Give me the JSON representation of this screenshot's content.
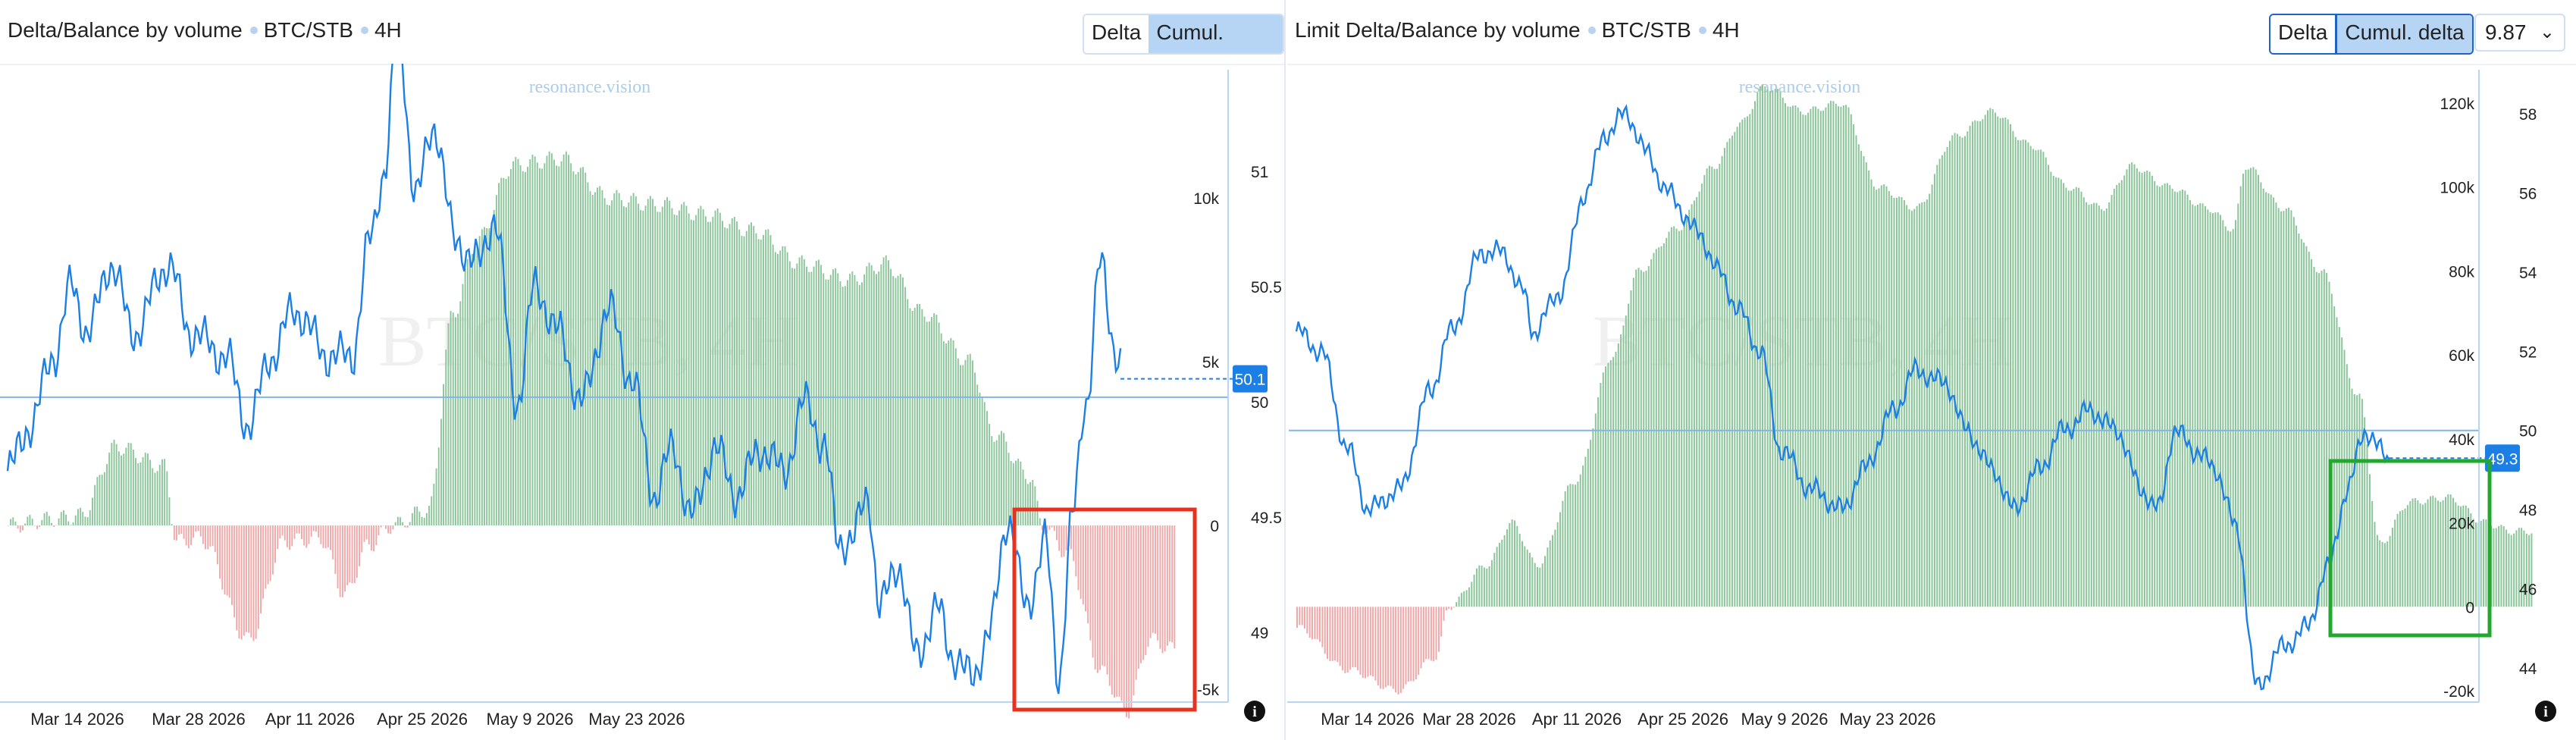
{
  "panels": [
    {
      "title": "Delta/Balance by volume",
      "pair": "BTC/STB",
      "timeframe": "4H",
      "buttons": {
        "delta": "Delta",
        "cumul": "Cumul. delta"
      },
      "watermark_site": "resonance.vision",
      "watermark_main": "BTC/STB, 4H"
    },
    {
      "title": "Limit Delta/Balance by volume",
      "pair": "BTC/STB",
      "timeframe": "4H",
      "buttons": {
        "delta": "Delta",
        "cumul": "Cumul. delta"
      },
      "select_value": "9.87",
      "watermark_site": "resonance.vision",
      "watermark_main": "BTC/STB, 4H"
    }
  ],
  "colors": {
    "price": "#1c7fe6",
    "positive": "#8cc59a",
    "negative": "#f0a7a7",
    "badge": "#1c7fe6",
    "highlight_left": "#e6321e",
    "highlight_right": "#23a82f"
  },
  "chart_data": [
    {
      "type": "bar",
      "title": "Delta/Balance by volume",
      "x_ticks": [
        "Mar 14 2026",
        "Mar 28 2026",
        "Apr 11 2026",
        "Apr 25 2026",
        "May 9 2026",
        "May 23 2026"
      ],
      "delta_ticks": [
        "10k",
        "5k",
        "0",
        "-5k"
      ],
      "price_ticks": [
        "51",
        "50.5",
        "50",
        "49.5",
        "49"
      ],
      "price_range": [
        48.82,
        51.5
      ],
      "delta_range": [
        -6500,
        13000
      ],
      "last_price_label": "50.1",
      "series": [
        {
          "kind": "cumulative_delta",
          "keypoints": [
            [
              0,
              0
            ],
            [
              20,
              200
            ],
            [
              30,
              300
            ],
            [
              45,
              2400
            ],
            [
              65,
              1800
            ],
            [
              70,
              -500
            ],
            [
              80,
              -400
            ],
            [
              100,
              -3500
            ],
            [
              115,
              -500
            ],
            [
              130,
              -400
            ],
            [
              140,
              -2100
            ],
            [
              150,
              -600
            ],
            [
              160,
              0
            ],
            [
              175,
              500
            ],
            [
              185,
              6500
            ],
            [
              195,
              8700
            ],
            [
              210,
              11000
            ],
            [
              230,
              11200
            ],
            [
              250,
              10000
            ],
            [
              270,
              9800
            ],
            [
              290,
              9500
            ],
            [
              310,
              9000
            ],
            [
              330,
              8000
            ],
            [
              350,
              7500
            ],
            [
              365,
              8000
            ],
            [
              380,
              6500
            ],
            [
              400,
              5000
            ],
            [
              410,
              2800
            ],
            [
              425,
              1500
            ],
            [
              430,
              0
            ],
            [
              440,
              -800
            ],
            [
              455,
              -4500
            ],
            [
              465,
              -5700
            ],
            [
              475,
              -3500
            ],
            [
              485,
              -3800
            ]
          ]
        },
        {
          "kind": "price",
          "keypoints": [
            [
              0,
              49.7
            ],
            [
              10,
              49.9
            ],
            [
              20,
              50.2
            ],
            [
              28,
              50.5
            ],
            [
              35,
              50.3
            ],
            [
              45,
              50.6
            ],
            [
              55,
              50.3
            ],
            [
              70,
              50.6
            ],
            [
              80,
              50.3
            ],
            [
              95,
              50.2
            ],
            [
              105,
              49.9
            ],
            [
              115,
              50.2
            ],
            [
              125,
              50.4
            ],
            [
              140,
              50.2
            ],
            [
              150,
              50.2
            ],
            [
              158,
              50.7
            ],
            [
              164,
              51.0
            ],
            [
              170,
              51.6
            ],
            [
              178,
              50.9
            ],
            [
              186,
              51.2
            ],
            [
              195,
              50.7
            ],
            [
              205,
              50.6
            ],
            [
              212,
              50.8
            ],
            [
              222,
              50.0
            ],
            [
              230,
              50.5
            ],
            [
              240,
              50.3
            ],
            [
              250,
              50.0
            ],
            [
              262,
              50.4
            ],
            [
              272,
              50.1
            ],
            [
              282,
              49.6
            ],
            [
              290,
              49.8
            ],
            [
              298,
              49.5
            ],
            [
              308,
              49.8
            ],
            [
              318,
              49.6
            ],
            [
              328,
              49.8
            ],
            [
              338,
              49.7
            ],
            [
              348,
              50.0
            ],
            [
              356,
              49.8
            ],
            [
              362,
              49.4
            ],
            [
              368,
              49.4
            ],
            [
              375,
              49.6
            ],
            [
              380,
              49.1
            ],
            [
              388,
              49.3
            ],
            [
              396,
              48.9
            ],
            [
              405,
              49.1
            ],
            [
              412,
              48.9
            ],
            [
              420,
              48.8
            ],
            [
              428,
              49.0
            ],
            [
              436,
              49.5
            ],
            [
              444,
              49.1
            ],
            [
              452,
              49.4
            ],
            [
              458,
              48.8
            ],
            [
              464,
              49.5
            ],
            [
              470,
              50.0
            ],
            [
              476,
              50.6
            ],
            [
              482,
              50.25
            ],
            [
              485,
              50.2
            ]
          ]
        }
      ]
    },
    {
      "type": "bar",
      "title": "Limit Delta/Balance by volume",
      "x_ticks": [
        "Mar 14 2026",
        "Mar 28 2026",
        "Apr 11 2026",
        "Apr 25 2026",
        "May 9 2026",
        "May 23 2026"
      ],
      "delta_ticks": [
        "120k",
        "100k",
        "80k",
        "60k",
        "40k",
        "20k",
        "0",
        "-20k"
      ],
      "price_ticks": [
        "58",
        "56",
        "54",
        "52",
        "50",
        "48",
        "46",
        "44"
      ],
      "price_range": [
        42.5,
        59.5
      ],
      "delta_range": [
        -22000,
        127000
      ],
      "last_price_label": "49.3",
      "series": [
        {
          "kind": "cumulative_delta",
          "keypoints": [
            [
              0,
              -5000
            ],
            [
              20,
              -15000
            ],
            [
              40,
              -20000
            ],
            [
              55,
              -12000
            ],
            [
              60,
              0
            ],
            [
              75,
              10000
            ],
            [
              85,
              20000
            ],
            [
              95,
              10000
            ],
            [
              110,
              30000
            ],
            [
              125,
              60000
            ],
            [
              135,
              80000
            ],
            [
              150,
              90000
            ],
            [
              165,
              105000
            ],
            [
              175,
              115000
            ],
            [
              185,
              124000
            ],
            [
              200,
              118000
            ],
            [
              215,
              120000
            ],
            [
              230,
              100000
            ],
            [
              245,
              95000
            ],
            [
              260,
              112000
            ],
            [
              275,
              118000
            ],
            [
              290,
              110000
            ],
            [
              305,
              100000
            ],
            [
              318,
              95000
            ],
            [
              330,
              105000
            ],
            [
              345,
              100000
            ],
            [
              360,
              95000
            ],
            [
              370,
              90000
            ],
            [
              375,
              105000
            ],
            [
              390,
              95000
            ],
            [
              405,
              80000
            ],
            [
              420,
              50000
            ],
            [
              428,
              15000
            ],
            [
              440,
              25000
            ],
            [
              455,
              26000
            ],
            [
              470,
              20000
            ],
            [
              480,
              18000
            ],
            [
              488,
              18000
            ]
          ]
        },
        {
          "kind": "price",
          "keypoints": [
            [
              0,
              52.5
            ],
            [
              12,
              52.0
            ],
            [
              25,
              49.5
            ],
            [
              35,
              48.0
            ],
            [
              50,
              48.5
            ],
            [
              65,
              51.0
            ],
            [
              75,
              52.5
            ],
            [
              90,
              54.5
            ],
            [
              100,
              54.5
            ],
            [
              110,
              53.5
            ],
            [
              115,
              52.5
            ],
            [
              128,
              53.5
            ],
            [
              140,
              56.0
            ],
            [
              150,
              57.5
            ],
            [
              160,
              58.0
            ],
            [
              170,
              57.0
            ],
            [
              180,
              56.0
            ],
            [
              195,
              55.0
            ],
            [
              205,
              54.0
            ],
            [
              215,
              53.0
            ],
            [
              225,
              52.0
            ],
            [
              235,
              49.5
            ],
            [
              250,
              48.5
            ],
            [
              265,
              48.0
            ],
            [
              275,
              49.0
            ],
            [
              290,
              50.5
            ],
            [
              300,
              51.5
            ],
            [
              315,
              51.2
            ],
            [
              325,
              50.0
            ],
            [
              338,
              49.0
            ],
            [
              348,
              48.0
            ],
            [
              360,
              49.0
            ],
            [
              372,
              50.0
            ],
            [
              385,
              50.5
            ],
            [
              398,
              50.0
            ],
            [
              410,
              48.5
            ],
            [
              418,
              48.0
            ],
            [
              426,
              50.0
            ],
            [
              436,
              49.5
            ],
            [
              446,
              49.0
            ],
            [
              456,
              47.5
            ],
            [
              466,
              43.5
            ],
            [
              478,
              44.5
            ],
            [
              490,
              45.0
            ],
            [
              500,
              46.5
            ],
            [
              510,
              48.5
            ],
            [
              518,
              50.0
            ],
            [
              526,
              49.5
            ],
            [
              530,
              49.3
            ]
          ]
        }
      ]
    }
  ]
}
